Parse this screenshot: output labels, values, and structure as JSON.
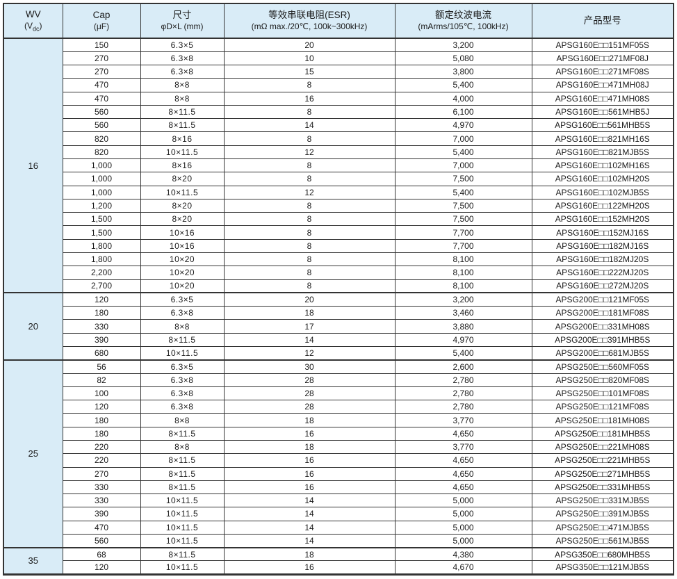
{
  "colors": {
    "header_fill": "#d9ecf7",
    "border": "#333333",
    "text": "#1a1a1a",
    "row_fill": "#ffffff"
  },
  "table": {
    "headers": {
      "wv": {
        "line1": "WV",
        "unit_pre": "(V",
        "unit_sub": "dc",
        "unit_post": ")"
      },
      "cap": {
        "line1": "Cap",
        "line2": "(μF)"
      },
      "size": {
        "line1": "尺寸",
        "line2": "φD×L (mm)"
      },
      "esr": {
        "line1": "等效串联电阻(ESR)",
        "line2": "(mΩ max./20℃, 100k~300kHz)"
      },
      "ripple": {
        "line1": "额定纹波电流",
        "line2": "(mArms/105℃, 100kHz)"
      },
      "part": {
        "line1": "产品型号"
      }
    },
    "groups": [
      {
        "wv": "16",
        "rows": [
          [
            "150",
            "6.3×5",
            "20",
            "3,200",
            "APSG160E□□151MF05S"
          ],
          [
            "270",
            "6.3×8",
            "10",
            "5,080",
            "APSG160E□□271MF08J"
          ],
          [
            "270",
            "6.3×8",
            "15",
            "3,800",
            "APSG160E□□271MF08S"
          ],
          [
            "470",
            "8×8",
            "8",
            "5,400",
            "APSG160E□□471MH08J"
          ],
          [
            "470",
            "8×8",
            "16",
            "4,000",
            "APSG160E□□471MH08S"
          ],
          [
            "560",
            "8×11.5",
            "8",
            "6,100",
            "APSG160E□□561MHB5J"
          ],
          [
            "560",
            "8×11.5",
            "14",
            "4,970",
            "APSG160E□□561MHB5S"
          ],
          [
            "820",
            "8×16",
            "8",
            "7,000",
            "APSG160E□□821MH16S"
          ],
          [
            "820",
            "10×11.5",
            "12",
            "5,400",
            "APSG160E□□821MJB5S"
          ],
          [
            "1,000",
            "8×16",
            "8",
            "7,000",
            "APSG160E□□102MH16S"
          ],
          [
            "1,000",
            "8×20",
            "8",
            "7,500",
            "APSG160E□□102MH20S"
          ],
          [
            "1,000",
            "10×11.5",
            "12",
            "5,400",
            "APSG160E□□102MJB5S"
          ],
          [
            "1,200",
            "8×20",
            "8",
            "7,500",
            "APSG160E□□122MH20S"
          ],
          [
            "1,500",
            "8×20",
            "8",
            "7,500",
            "APSG160E□□152MH20S"
          ],
          [
            "1,500",
            "10×16",
            "8",
            "7,700",
            "APSG160E□□152MJ16S"
          ],
          [
            "1,800",
            "10×16",
            "8",
            "7,700",
            "APSG160E□□182MJ16S"
          ],
          [
            "1,800",
            "10×20",
            "8",
            "8,100",
            "APSG160E□□182MJ20S"
          ],
          [
            "2,200",
            "10×20",
            "8",
            "8,100",
            "APSG160E□□222MJ20S"
          ],
          [
            "2,700",
            "10×20",
            "8",
            "8,100",
            "APSG160E□□272MJ20S"
          ]
        ]
      },
      {
        "wv": "20",
        "rows": [
          [
            "120",
            "6.3×5",
            "20",
            "3,200",
            "APSG200E□□121MF05S"
          ],
          [
            "180",
            "6.3×8",
            "18",
            "3,460",
            "APSG200E□□181MF08S"
          ],
          [
            "330",
            "8×8",
            "17",
            "3,880",
            "APSG200E□□331MH08S"
          ],
          [
            "390",
            "8×11.5",
            "14",
            "4,970",
            "APSG200E□□391MHB5S"
          ],
          [
            "680",
            "10×11.5",
            "12",
            "5,400",
            "APSG200E□□681MJB5S"
          ]
        ]
      },
      {
        "wv": "25",
        "rows": [
          [
            "56",
            "6.3×5",
            "30",
            "2,600",
            "APSG250E□□560MF05S"
          ],
          [
            "82",
            "6.3×8",
            "28",
            "2,780",
            "APSG250E□□820MF08S"
          ],
          [
            "100",
            "6.3×8",
            "28",
            "2,780",
            "APSG250E□□101MF08S"
          ],
          [
            "120",
            "6.3×8",
            "28",
            "2,780",
            "APSG250E□□121MF08S"
          ],
          [
            "180",
            "8×8",
            "18",
            "3,770",
            "APSG250E□□181MH08S"
          ],
          [
            "180",
            "8×11.5",
            "16",
            "4,650",
            "APSG250E□□181MHB5S"
          ],
          [
            "220",
            "8×8",
            "18",
            "3,770",
            "APSG250E□□221MH08S"
          ],
          [
            "220",
            "8×11.5",
            "16",
            "4,650",
            "APSG250E□□221MHB5S"
          ],
          [
            "270",
            "8×11.5",
            "16",
            "4,650",
            "APSG250E□□271MHB5S"
          ],
          [
            "330",
            "8×11.5",
            "16",
            "4,650",
            "APSG250E□□331MHB5S"
          ],
          [
            "330",
            "10×11.5",
            "14",
            "5,000",
            "APSG250E□□331MJB5S"
          ],
          [
            "390",
            "10×11.5",
            "14",
            "5,000",
            "APSG250E□□391MJB5S"
          ],
          [
            "470",
            "10×11.5",
            "14",
            "5,000",
            "APSG250E□□471MJB5S"
          ],
          [
            "560",
            "10×11.5",
            "14",
            "5,000",
            "APSG250E□□561MJB5S"
          ]
        ]
      },
      {
        "wv": "35",
        "rows": [
          [
            "68",
            "8×11.5",
            "18",
            "4,380",
            "APSG350E□□680MHB5S"
          ],
          [
            "120",
            "10×11.5",
            "16",
            "4,670",
            "APSG350E□□121MJB5S"
          ]
        ]
      }
    ]
  }
}
